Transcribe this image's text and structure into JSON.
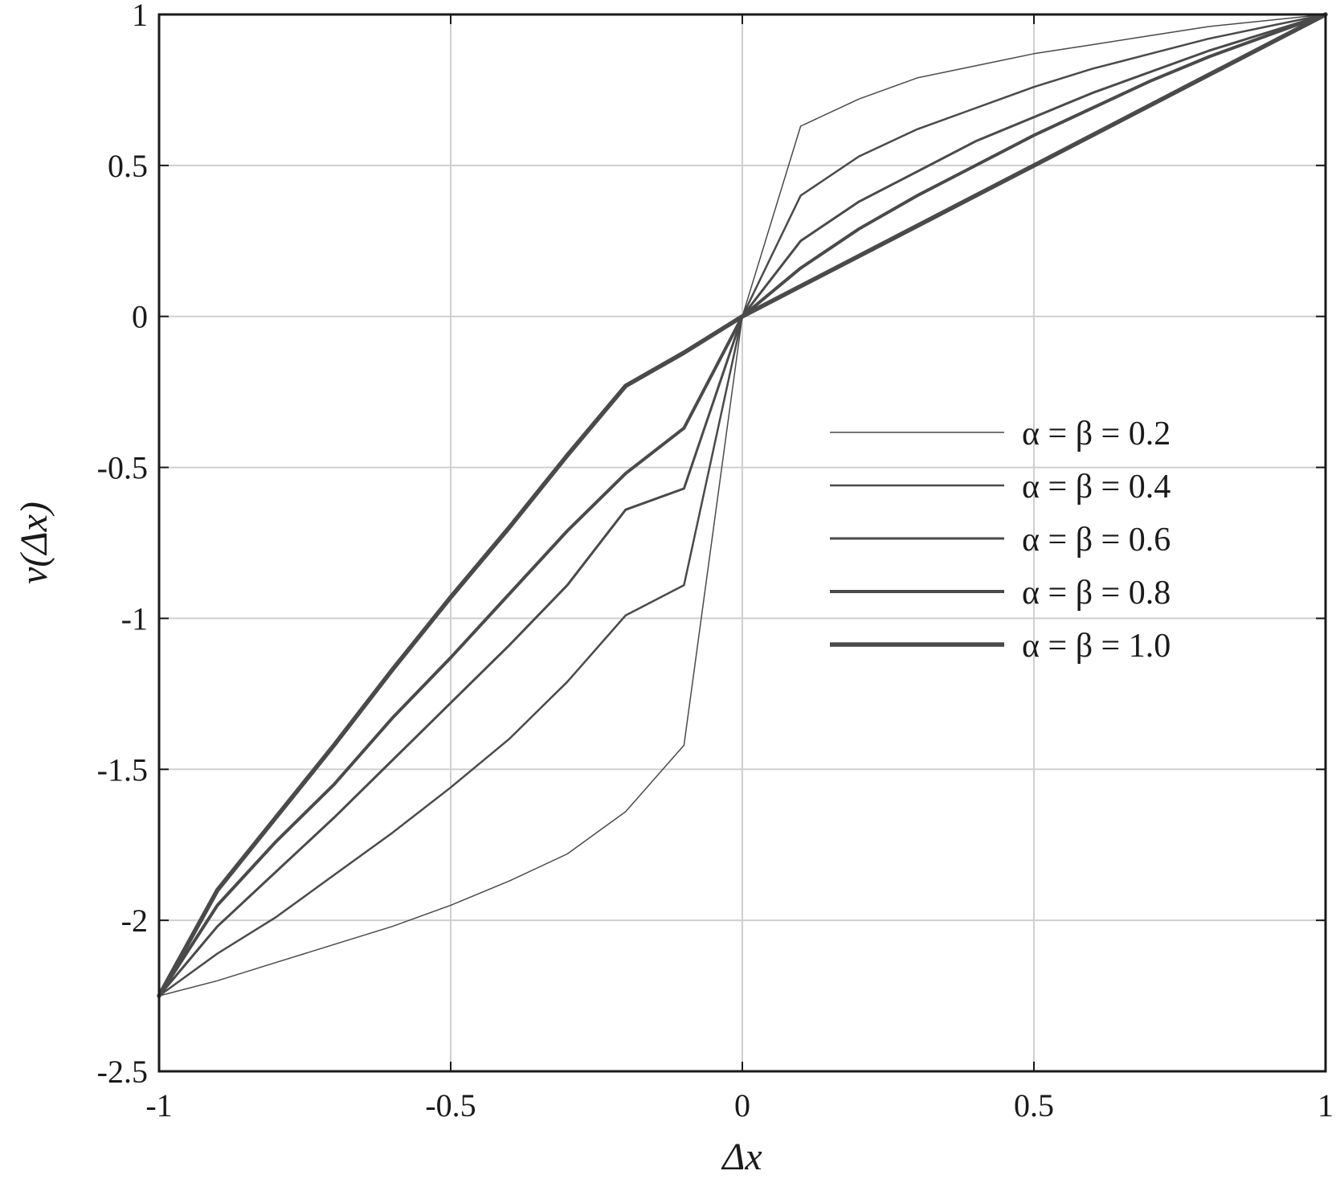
{
  "chart_data": {
    "type": "line",
    "title": "",
    "xlabel": "Δx",
    "ylabel": "v(Δx)",
    "xlim": [
      -1,
      1
    ],
    "ylim": [
      -2.5,
      1
    ],
    "x_ticks": [
      -1,
      -0.5,
      0,
      0.5,
      1
    ],
    "x_tick_labels": [
      "-1",
      "-0.5",
      "0",
      "0.5",
      "1"
    ],
    "y_ticks": [
      -2.5,
      -2,
      -1.5,
      -1,
      -0.5,
      0,
      0.5,
      1
    ],
    "y_tick_labels": [
      "-2.5",
      "-2",
      "-1.5",
      "-1",
      "-0.5",
      "0",
      "0.5",
      "1"
    ],
    "grid": true,
    "legend_position": "right",
    "line_color": "#4a4a4a",
    "x": [
      -1,
      -0.9,
      -0.8,
      -0.7,
      -0.6,
      -0.5,
      -0.4,
      -0.3,
      -0.2,
      -0.1,
      0,
      0.1,
      0.2,
      0.3,
      0.4,
      0.5,
      0.6,
      0.7,
      0.8,
      0.9,
      1
    ],
    "series": [
      {
        "name": "α = β = 0.2",
        "values": [
          -2.25,
          -2.2,
          -2.14,
          -2.08,
          -2.02,
          -1.95,
          -1.87,
          -1.78,
          -1.64,
          -1.42,
          0,
          0.63,
          0.72,
          0.79,
          0.83,
          0.87,
          0.9,
          0.93,
          0.96,
          0.98,
          1.0
        ]
      },
      {
        "name": "α = β = 0.4",
        "values": [
          -2.25,
          -2.11,
          -1.99,
          -1.85,
          -1.71,
          -1.56,
          -1.4,
          -1.21,
          -0.99,
          -0.89,
          0,
          0.4,
          0.53,
          0.62,
          0.69,
          0.76,
          0.82,
          0.87,
          0.92,
          0.96,
          1.0
        ]
      },
      {
        "name": "α = β = 0.6",
        "values": [
          -2.25,
          -2.02,
          -1.84,
          -1.66,
          -1.47,
          -1.28,
          -1.09,
          -0.89,
          -0.64,
          -0.57,
          0,
          0.25,
          0.38,
          0.48,
          0.58,
          0.66,
          0.74,
          0.81,
          0.88,
          0.94,
          1.0
        ]
      },
      {
        "name": "α = β = 0.8",
        "values": [
          -2.25,
          -1.95,
          -1.74,
          -1.55,
          -1.33,
          -1.13,
          -0.92,
          -0.71,
          -0.52,
          -0.37,
          0,
          0.16,
          0.29,
          0.4,
          0.5,
          0.6,
          0.69,
          0.78,
          0.86,
          0.93,
          1.0
        ]
      },
      {
        "name": "α = β = 1.0",
        "values": [
          -2.25,
          -1.9,
          -1.66,
          -1.42,
          -1.17,
          -0.93,
          -0.7,
          -0.46,
          -0.23,
          -0.12,
          0,
          0.1,
          0.2,
          0.3,
          0.4,
          0.5,
          0.6,
          0.7,
          0.8,
          0.9,
          1.0
        ]
      }
    ]
  }
}
